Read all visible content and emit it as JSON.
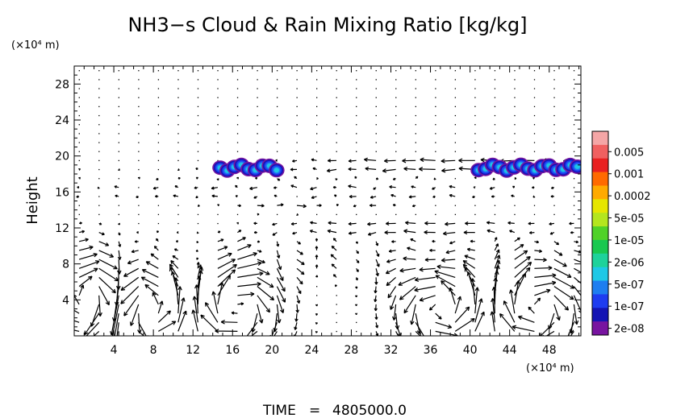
{
  "chart_data": {
    "type": "vector-field-contour",
    "title": "NH3−s Cloud & Rain Mixing Ratio [kg/kg]",
    "ylabel": "Height",
    "xunit": "(×10⁴ m)",
    "yunit": "(×10⁴ m)",
    "xlim": [
      0,
      51.2
    ],
    "ylim": [
      0,
      30
    ],
    "xticks": [
      4,
      8,
      12,
      16,
      20,
      24,
      28,
      32,
      36,
      40,
      44,
      48
    ],
    "xtick_labels": [
      "4",
      "8",
      "12",
      "16",
      "20",
      "24",
      "28",
      "32",
      "36",
      "40",
      "44",
      "48"
    ],
    "yticks": [
      4,
      8,
      12,
      16,
      20,
      24,
      28
    ],
    "ytick_labels": [
      "4",
      "8",
      "12",
      "16",
      "20",
      "24",
      "28"
    ],
    "colorbar": {
      "labels": [
        "0.005",
        "0.001",
        "0.0002",
        "5e-05",
        "1e-05",
        "2e-06",
        "5e-07",
        "1e-07",
        "2e-08"
      ],
      "colors": [
        "#f4a6a6",
        "#f06060",
        "#e82020",
        "#ff6a00",
        "#ffaa00",
        "#e6e600",
        "#b4e61e",
        "#50d228",
        "#19c850",
        "#1ed29b",
        "#1ec8e6",
        "#1e7ef0",
        "#1e3cf0",
        "#1414b4",
        "#7814a0"
      ]
    },
    "cloud_regions": [
      {
        "x_start": 14.4,
        "x_end": 20.8,
        "y_start": 17.8,
        "y_end": 19.6
      },
      {
        "x_start": 40.5,
        "x_end": 51.2,
        "y_start": 17.8,
        "y_end": 19.6
      }
    ],
    "wind_features": [
      {
        "description": "strong westward jet",
        "y": 19,
        "x_range": [
          25,
          51.2
        ]
      },
      {
        "description": "westward jet",
        "y": 12,
        "x_range": [
          20,
          51.2
        ]
      },
      {
        "description": "convective circulation cell",
        "x": 7,
        "y": 3
      },
      {
        "description": "convective circulation cell",
        "x": 16.5,
        "y": 3
      },
      {
        "description": "convective circulation cell",
        "x": 37,
        "y": 3
      }
    ]
  },
  "footer": {
    "time_label": "TIME",
    "time_eq": "=",
    "time_value": "4805000.0"
  }
}
